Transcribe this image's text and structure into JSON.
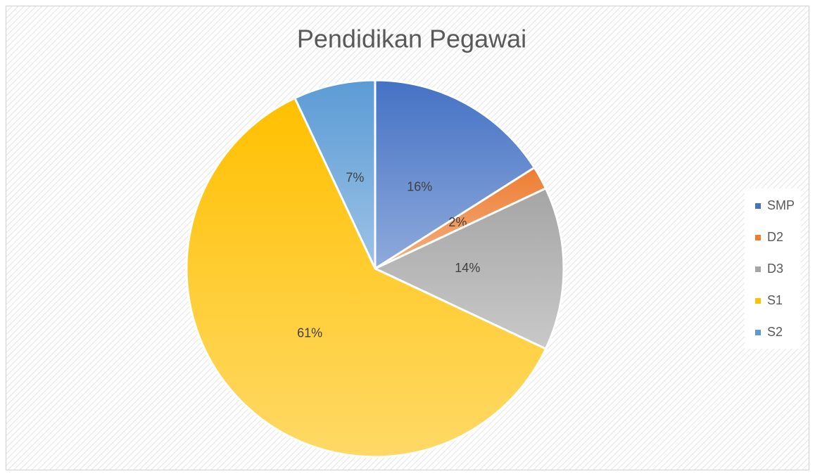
{
  "chart_data": {
    "type": "pie",
    "title": "Pendidikan Pegawai",
    "categories": [
      "SMP",
      "D2",
      "D3",
      "S1",
      "S2"
    ],
    "values": [
      16,
      2,
      14,
      61,
      7
    ],
    "value_labels": [
      "16%",
      "2%",
      "14%",
      "61%",
      "7%"
    ],
    "colors": [
      "#4472c4",
      "#ed7d31",
      "#a5a5a5",
      "#ffc000",
      "#5b9bd5"
    ],
    "legend": "right"
  }
}
